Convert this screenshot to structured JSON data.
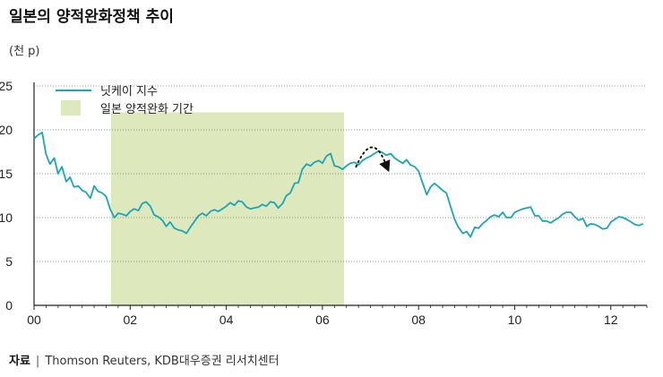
{
  "title": "일본의 양적완화정책 추이",
  "unit": "(천 p)",
  "source_key": "자료",
  "source_text": "Thomson Reuters, KDB대우증권 리서치센터",
  "colors": {
    "line": "#1aa6b7",
    "band": "#dde8bd",
    "arrow": "#111111"
  },
  "chart_data": {
    "type": "line",
    "ylim": [
      0,
      25
    ],
    "yticks": [
      0,
      5,
      10,
      15,
      20,
      25
    ],
    "xlim": [
      2000.0,
      2012.75
    ],
    "xticks": [
      {
        "value": 2000,
        "label": "00"
      },
      {
        "value": 2002,
        "label": "02"
      },
      {
        "value": 2004,
        "label": "04"
      },
      {
        "value": 2006,
        "label": "06"
      },
      {
        "value": 2008,
        "label": "08"
      },
      {
        "value": 2010,
        "label": "10"
      },
      {
        "value": 2012,
        "label": "12"
      }
    ],
    "grid": "horizontal-dotted",
    "legend": [
      {
        "label": "닛케이 지수",
        "kind": "line"
      },
      {
        "label": "일본 양적완화 기간",
        "kind": "band"
      }
    ],
    "band": {
      "start": 2001.6,
      "end": 2006.45,
      "label": "일본 양적완화 기간"
    },
    "annotation": {
      "type": "curved-arrow",
      "from": 2006.7,
      "to": 2007.35
    },
    "series": [
      {
        "name": "닛케이 지수",
        "x": [
          2000.0,
          2000.08,
          2000.17,
          2000.25,
          2000.33,
          2000.42,
          2000.5,
          2000.58,
          2000.67,
          2000.75,
          2000.83,
          2000.92,
          2001.0,
          2001.08,
          2001.17,
          2001.25,
          2001.33,
          2001.42,
          2001.5,
          2001.58,
          2001.67,
          2001.75,
          2001.83,
          2001.92,
          2002.0,
          2002.08,
          2002.17,
          2002.25,
          2002.33,
          2002.42,
          2002.5,
          2002.58,
          2002.67,
          2002.75,
          2002.83,
          2002.92,
          2003.0,
          2003.08,
          2003.17,
          2003.25,
          2003.33,
          2003.42,
          2003.5,
          2003.58,
          2003.67,
          2003.75,
          2003.83,
          2003.92,
          2004.0,
          2004.08,
          2004.17,
          2004.25,
          2004.33,
          2004.42,
          2004.5,
          2004.58,
          2004.67,
          2004.75,
          2004.83,
          2004.92,
          2005.0,
          2005.08,
          2005.17,
          2005.25,
          2005.33,
          2005.42,
          2005.5,
          2005.58,
          2005.67,
          2005.75,
          2005.83,
          2005.92,
          2006.0,
          2006.08,
          2006.17,
          2006.25,
          2006.33,
          2006.42,
          2006.5,
          2006.58,
          2006.67,
          2006.75,
          2006.83,
          2006.92,
          2007.0,
          2007.08,
          2007.17,
          2007.25,
          2007.33,
          2007.42,
          2007.5,
          2007.58,
          2007.67,
          2007.75,
          2007.83,
          2007.92,
          2008.0,
          2008.08,
          2008.17,
          2008.25,
          2008.33,
          2008.42,
          2008.5,
          2008.58,
          2008.67,
          2008.75,
          2008.83,
          2008.92,
          2009.0,
          2009.08,
          2009.17,
          2009.25,
          2009.33,
          2009.42,
          2009.5,
          2009.58,
          2009.67,
          2009.75,
          2009.83,
          2009.92,
          2010.0,
          2010.08,
          2010.17,
          2010.25,
          2010.33,
          2010.42,
          2010.5,
          2010.58,
          2010.67,
          2010.75,
          2010.83,
          2010.92,
          2011.0,
          2011.08,
          2011.17,
          2011.25,
          2011.33,
          2011.42,
          2011.5,
          2011.58,
          2011.67,
          2011.75,
          2011.83,
          2011.92,
          2012.0,
          2012.08,
          2012.17,
          2012.25,
          2012.33,
          2012.42,
          2012.5,
          2012.58,
          2012.67
        ],
        "values": [
          19.0,
          19.4,
          19.7,
          17.2,
          16.1,
          16.8,
          15.0,
          15.8,
          14.1,
          14.6,
          13.5,
          13.6,
          13.1,
          12.9,
          12.2,
          13.6,
          13.0,
          12.8,
          12.4,
          11.0,
          10.0,
          10.5,
          10.4,
          10.2,
          10.7,
          11.0,
          10.8,
          11.6,
          11.8,
          11.3,
          10.3,
          10.1,
          9.7,
          9.0,
          9.5,
          8.8,
          8.6,
          8.5,
          8.2,
          8.9,
          9.5,
          10.2,
          10.5,
          10.2,
          10.7,
          10.9,
          10.7,
          11.0,
          11.3,
          11.7,
          11.4,
          11.9,
          11.8,
          11.2,
          11.0,
          11.1,
          11.2,
          11.5,
          11.3,
          11.8,
          11.7,
          11.1,
          11.6,
          12.5,
          12.8,
          13.9,
          14.0,
          15.5,
          16.1,
          15.9,
          16.3,
          16.5,
          16.2,
          17.0,
          17.3,
          15.9,
          15.8,
          15.5,
          15.9,
          16.2,
          16.3,
          16.0,
          16.5,
          16.8,
          17.0,
          17.3,
          17.6,
          17.4,
          17.1,
          17.3,
          16.8,
          16.5,
          16.2,
          16.6,
          16.0,
          15.8,
          15.3,
          14.0,
          12.6,
          13.5,
          13.9,
          13.5,
          13.1,
          12.8,
          11.2,
          9.8,
          8.9,
          8.2,
          8.4,
          7.8,
          8.9,
          8.8,
          9.3,
          9.7,
          10.1,
          10.3,
          10.1,
          10.6,
          10.0,
          10.0,
          10.6,
          10.8,
          11.0,
          11.1,
          11.2,
          10.2,
          10.2,
          9.6,
          9.6,
          9.4,
          9.7,
          10.0,
          10.4,
          10.6,
          10.6,
          10.1,
          9.7,
          9.9,
          9.0,
          9.3,
          9.2,
          9.0,
          8.7,
          8.8,
          9.5,
          9.8,
          10.1,
          10.0,
          9.8,
          9.5,
          9.2,
          9.1,
          9.3
        ]
      }
    ]
  }
}
